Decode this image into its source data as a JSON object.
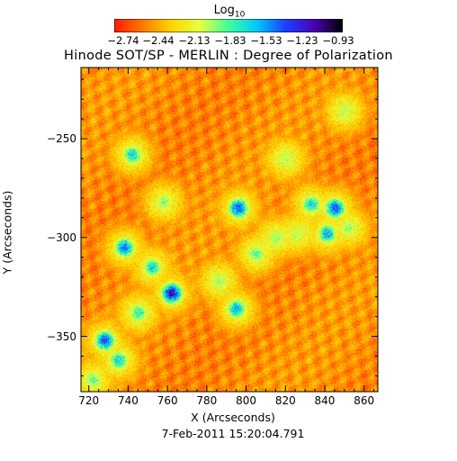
{
  "chart_data": {
    "type": "heatmap",
    "title": "Hinode SOT/SP - MERLIN : Degree of Polarization",
    "subtitle": "7-Feb-2011 15:20:04.791",
    "xlabel": "X (Arcseconds)",
    "ylabel": "Y (Arcseconds)",
    "xlim": [
      716,
      867
    ],
    "ylim": [
      -378,
      -214
    ],
    "x_ticks": [
      "720",
      "740",
      "760",
      "780",
      "800",
      "820",
      "840",
      "860"
    ],
    "y_ticks": [
      "-250",
      "-300",
      "-350"
    ],
    "colorbar": {
      "label_base": "Log",
      "label_sub": "10",
      "range": [
        -2.74,
        -0.93
      ],
      "tick_labels": [
        "-2.74",
        "-2.44",
        "-2.13",
        "-1.83",
        "-1.53",
        "-1.23",
        "-0.93"
      ],
      "colors": [
        "#ff1a00",
        "#ff7a00",
        "#ffd400",
        "#e8ff40",
        "#40ff9a",
        "#00c8ff",
        "#1a40ff",
        "#4b00b4",
        "#000000"
      ]
    },
    "strong_polarization_regions": [
      {
        "x": 742,
        "y": -258,
        "level": -1.6
      },
      {
        "x": 758,
        "y": -282,
        "level": -1.9
      },
      {
        "x": 738,
        "y": -305,
        "level": -1.4
      },
      {
        "x": 752,
        "y": -315,
        "level": -1.6
      },
      {
        "x": 762,
        "y": -328,
        "level": -1.1
      },
      {
        "x": 745,
        "y": -338,
        "level": -1.7
      },
      {
        "x": 728,
        "y": -352,
        "level": -1.3
      },
      {
        "x": 735,
        "y": -362,
        "level": -1.6
      },
      {
        "x": 722,
        "y": -372,
        "level": -1.8
      },
      {
        "x": 796,
        "y": -285,
        "level": -1.3
      },
      {
        "x": 795,
        "y": -336,
        "level": -1.5
      },
      {
        "x": 805,
        "y": -308,
        "level": -1.8
      },
      {
        "x": 815,
        "y": -300,
        "level": -1.9
      },
      {
        "x": 833,
        "y": -283,
        "level": -1.6
      },
      {
        "x": 845,
        "y": -285,
        "level": -1.3
      },
      {
        "x": 841,
        "y": -298,
        "level": -1.5
      },
      {
        "x": 852,
        "y": -295,
        "level": -1.9
      },
      {
        "x": 820,
        "y": -260,
        "level": -2.0
      },
      {
        "x": 786,
        "y": -322,
        "level": -1.9
      },
      {
        "x": 850,
        "y": -236,
        "level": -2.0
      },
      {
        "x": 826,
        "y": -298,
        "level": -2.0
      }
    ],
    "background_level": -2.74,
    "grid": false
  }
}
